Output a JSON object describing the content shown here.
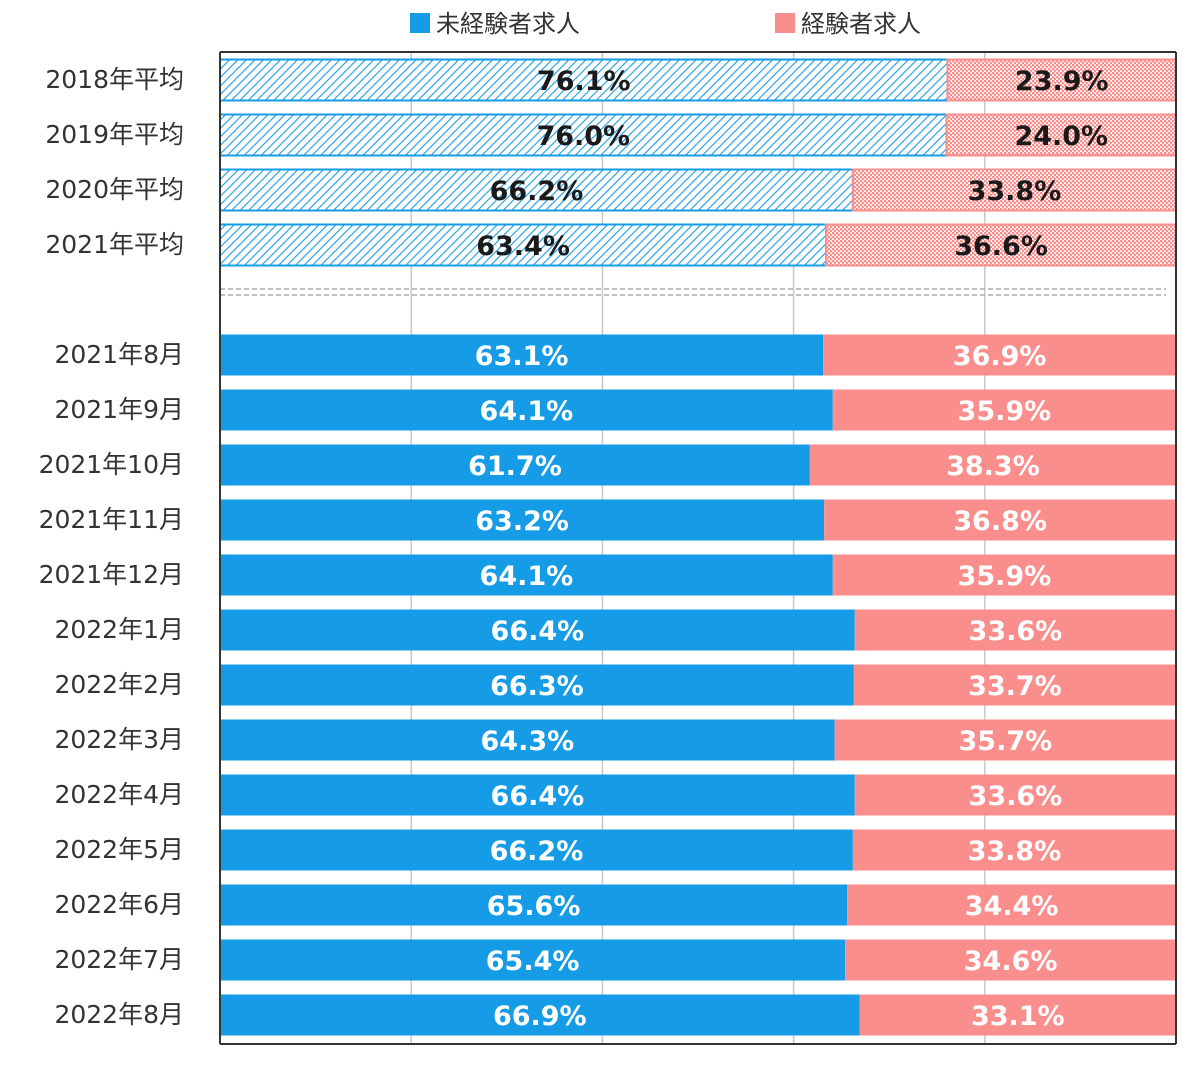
{
  "chart_data": {
    "type": "bar",
    "orientation": "horizontal",
    "stacked": true,
    "percent_stacked": true,
    "legend": [
      {
        "name": "未経験者求人",
        "color": "#169CE6"
      },
      {
        "name": "経験者求人",
        "color": "#FA8E8C"
      }
    ],
    "legend_position": "top",
    "xlim": [
      0,
      100
    ],
    "grid": true,
    "categories": [
      "2018年平均",
      "2019年平均",
      "2020年平均",
      "2021年平均",
      "2021年8月",
      "2021年9月",
      "2021年10月",
      "2021年11月",
      "2021年12月",
      "2022年1月",
      "2022年2月",
      "2022年3月",
      "2022年4月",
      "2022年5月",
      "2022年6月",
      "2022年7月",
      "2022年8月"
    ],
    "hatched_categories": [
      "2018年平均",
      "2019年平均",
      "2020年平均",
      "2021年平均"
    ],
    "series": [
      {
        "name": "未経験者求人",
        "values": [
          76.1,
          76.0,
          66.2,
          63.4,
          63.1,
          64.1,
          61.7,
          63.2,
          64.1,
          66.4,
          66.3,
          64.3,
          66.4,
          66.2,
          65.6,
          65.4,
          66.9
        ],
        "labels": [
          "76.1%",
          "76.0%",
          "66.2%",
          "63.4%",
          "63.1%",
          "64.1%",
          "61.7%",
          "63.2%",
          "64.1%",
          "66.4%",
          "66.3%",
          "64.3%",
          "66.4%",
          "66.2%",
          "65.6%",
          "65.4%",
          "66.9%"
        ]
      },
      {
        "name": "経験者求人",
        "values": [
          23.9,
          24.0,
          33.8,
          36.6,
          36.9,
          35.9,
          38.3,
          36.8,
          35.9,
          33.6,
          33.7,
          35.7,
          33.6,
          33.8,
          34.4,
          34.6,
          33.1
        ],
        "labels": [
          "23.9%",
          "24.0%",
          "33.8%",
          "36.6%",
          "36.9%",
          "35.9%",
          "38.3%",
          "36.8%",
          "35.9%",
          "33.6%",
          "33.7%",
          "35.7%",
          "33.6%",
          "33.8%",
          "34.4%",
          "34.6%",
          "33.1%"
        ]
      }
    ]
  }
}
